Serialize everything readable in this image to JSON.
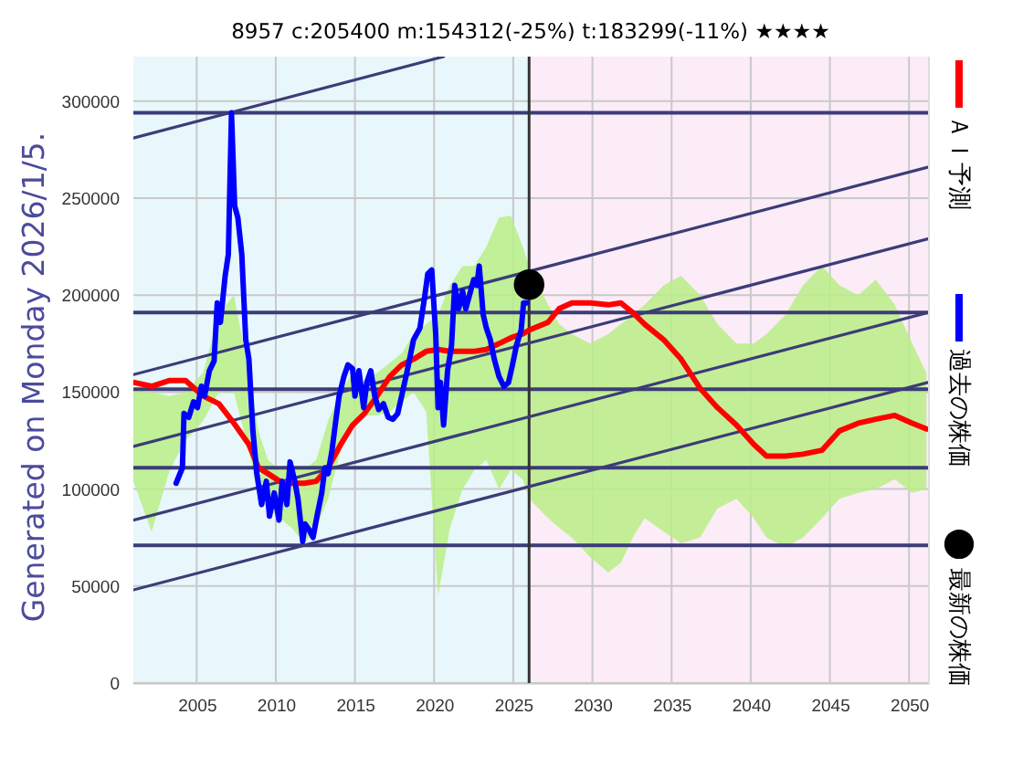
{
  "chart_data": {
    "type": "line",
    "title": "8957 c:205400 m:154312(-25%) t:183299(-11%) ★★★★",
    "xlim": [
      2001,
      2051.2
    ],
    "ylim": [
      0,
      323000
    ],
    "xticks": [
      2005,
      2010,
      2015,
      2020,
      2025,
      2030,
      2035,
      2040,
      2045,
      2050
    ],
    "yticks": [
      0,
      50000,
      100000,
      150000,
      200000,
      250000,
      300000
    ],
    "grid": true,
    "legend": "right",
    "bands": [
      {
        "axis": "x",
        "from": 2001,
        "to": 2026,
        "color": "#e8f7fb"
      },
      {
        "axis": "x",
        "from": 2026,
        "to": 2051.2,
        "color": "#fbecf7"
      }
    ],
    "ref_lines": [
      {
        "axis": "y",
        "value": 294000,
        "color": "#3c3c78"
      },
      {
        "axis": "y",
        "value": 191000,
        "color": "#3c3c78"
      },
      {
        "axis": "y",
        "value": 151500,
        "color": "#3c3c78"
      },
      {
        "axis": "y",
        "value": 111000,
        "color": "#3c3c78"
      },
      {
        "axis": "y",
        "value": 71000,
        "color": "#3c3c78"
      },
      {
        "axis": "x",
        "value": 2026,
        "color": "#333333"
      }
    ],
    "annotations": [
      "Generated on Monday 2026/1/5."
    ],
    "series": [
      {
        "color": "#3c3c78",
        "x": [
          2001,
          2020.6
        ],
        "values": [
          281000,
          323000
        ]
      },
      {
        "color": "#3c3c78",
        "x": [
          2001,
          2051.2
        ],
        "values": [
          159000,
          266000
        ]
      },
      {
        "color": "#3c3c78",
        "x": [
          2001,
          2051.2
        ],
        "values": [
          122000,
          229000
        ]
      },
      {
        "color": "#3c3c78",
        "x": [
          2001,
          2051.2
        ],
        "values": [
          84000,
          191000
        ]
      },
      {
        "color": "#3c3c78",
        "x": [
          2001,
          2051.2
        ],
        "values": [
          48000,
          155000
        ]
      },
      {
        "name": "ＡＩ予測",
        "color": "#ff0000",
        "x": [
          2001.0,
          2002.15,
          2003.3,
          2004.3,
          2004.85,
          2005.4,
          2006.4,
          2007.35,
          2008.3,
          2008.9,
          2009.5,
          2010.25,
          2011.0,
          2011.8,
          2012.55,
          2013.3,
          2014.1,
          2014.85,
          2015.6,
          2016.4,
          2017.2,
          2017.95,
          2018.7,
          2019.5,
          2020.25,
          2021.0,
          2021.8,
          2022.55,
          2023.3,
          2024.1,
          2024.85,
          2025.6,
          2026.0,
          2027.2,
          2027.9,
          2028.7,
          2029.85,
          2031.0,
          2031.8,
          2032.55,
          2033.3,
          2034.5,
          2035.6,
          2036.8,
          2037.9,
          2039.1,
          2040.2,
          2041.0,
          2042.2,
          2043.3,
          2044.5,
          2045.6,
          2046.8,
          2047.9,
          2049.1,
          2050.2,
          2051.1
        ],
        "values": [
          155000,
          153000,
          156000,
          156000,
          152000,
          148000,
          144000,
          134000,
          123000,
          111000,
          108000,
          104000,
          103000,
          103000,
          104000,
          111000,
          123000,
          133000,
          139000,
          148000,
          158000,
          164000,
          167000,
          171000,
          172000,
          171000,
          171000,
          171000,
          172000,
          175000,
          178000,
          180000,
          182000,
          186000,
          193000,
          196000,
          196000,
          195000,
          196000,
          191000,
          185000,
          177000,
          167000,
          152000,
          142000,
          133000,
          123000,
          117000,
          117000,
          118000,
          120000,
          130000,
          134000,
          136000,
          138000,
          134000,
          131000
        ],
        "lower": [
          104000,
          78000,
          110000,
          125000,
          130000,
          135000,
          150000,
          150000,
          120000,
          95000,
          90000,
          85000,
          80000,
          72000,
          80000,
          95000,
          120000,
          135000,
          138000,
          138000,
          140000,
          145000,
          150000,
          140000,
          45000,
          80000,
          100000,
          110000,
          115000,
          100000,
          110000,
          105000,
          95000,
          85000,
          80000,
          75000,
          65000,
          57000,
          62000,
          75000,
          85000,
          78000,
          72000,
          75000,
          90000,
          95000,
          85000,
          75000,
          70000,
          75000,
          85000,
          95000,
          98000,
          100000,
          105000,
          98000,
          100000
        ],
        "upper": [
          151000,
          150000,
          148000,
          150000,
          155000,
          160000,
          190000,
          200000,
          160000,
          130000,
          115000,
          110000,
          112000,
          110000,
          115000,
          135000,
          150000,
          160000,
          155000,
          160000,
          165000,
          170000,
          180000,
          185000,
          190000,
          205000,
          215000,
          215000,
          225000,
          240000,
          241000,
          225000,
          215000,
          195000,
          185000,
          180000,
          175000,
          180000,
          185000,
          190000,
          195000,
          205000,
          210000,
          200000,
          185000,
          175000,
          175000,
          180000,
          190000,
          205000,
          215000,
          205000,
          200000,
          208000,
          195000,
          175000,
          160000
        ]
      },
      {
        "name": "過去の株価",
        "color": "#0000ff",
        "x": [
          2003.7,
          2004.1,
          2004.2,
          2004.5,
          2004.8,
          2005.05,
          2005.3,
          2005.5,
          2005.8,
          2006.1,
          2006.3,
          2006.5,
          2006.8,
          2007.0,
          2007.2,
          2007.4,
          2007.6,
          2007.85,
          2008.1,
          2008.3,
          2008.55,
          2008.8,
          2009.1,
          2009.4,
          2009.6,
          2009.9,
          2010.2,
          2010.4,
          2010.7,
          2010.9,
          2011.2,
          2011.4,
          2011.7,
          2011.85,
          2012.1,
          2012.35,
          2012.6,
          2012.9,
          2013.1,
          2013.3,
          2013.55,
          2013.8,
          2014.0,
          2014.3,
          2014.55,
          2014.85,
          2015.0,
          2015.25,
          2015.55,
          2015.75,
          2016.0,
          2016.25,
          2016.5,
          2016.8,
          2017.1,
          2017.4,
          2017.7,
          2017.95,
          2018.3,
          2018.7,
          2019.1,
          2019.4,
          2019.6,
          2019.85,
          2020.1,
          2020.25,
          2020.4,
          2020.6,
          2020.85,
          2021.1,
          2021.3,
          2021.55,
          2021.8,
          2022.0,
          2022.2,
          2022.5,
          2022.7,
          2022.85,
          2023.1,
          2023.3,
          2023.55,
          2023.8,
          2024.1,
          2024.4,
          2024.7,
          2024.95,
          2025.2,
          2025.5,
          2025.65,
          2025.85
        ],
        "values": [
          103000,
          111000,
          139000,
          137000,
          145000,
          142000,
          153000,
          148000,
          161000,
          166000,
          196000,
          186000,
          210000,
          221000,
          294000,
          246000,
          240000,
          221000,
          177000,
          167000,
          130000,
          108000,
          92000,
          104000,
          86000,
          98000,
          84000,
          104000,
          92000,
          114000,
          104000,
          95000,
          73000,
          82000,
          79000,
          75000,
          86000,
          98000,
          111000,
          108000,
          120000,
          136000,
          148000,
          158000,
          164000,
          162000,
          148000,
          161000,
          142000,
          155000,
          161000,
          148000,
          141000,
          144000,
          137000,
          136000,
          139000,
          148000,
          161000,
          177000,
          183000,
          199000,
          211000,
          213000,
          180000,
          142000,
          155000,
          133000,
          161000,
          174000,
          205000,
          193000,
          202000,
          193000,
          199000,
          208000,
          205000,
          215000,
          190000,
          183000,
          177000,
          167000,
          158000,
          153000,
          155000,
          164000,
          174000,
          182000,
          196000,
          196000
        ]
      },
      {
        "name": "最新の株価",
        "type": "scatter",
        "marker": "circle",
        "color": "#000000",
        "x": [
          2026.0
        ],
        "values": [
          205400
        ]
      }
    ]
  }
}
